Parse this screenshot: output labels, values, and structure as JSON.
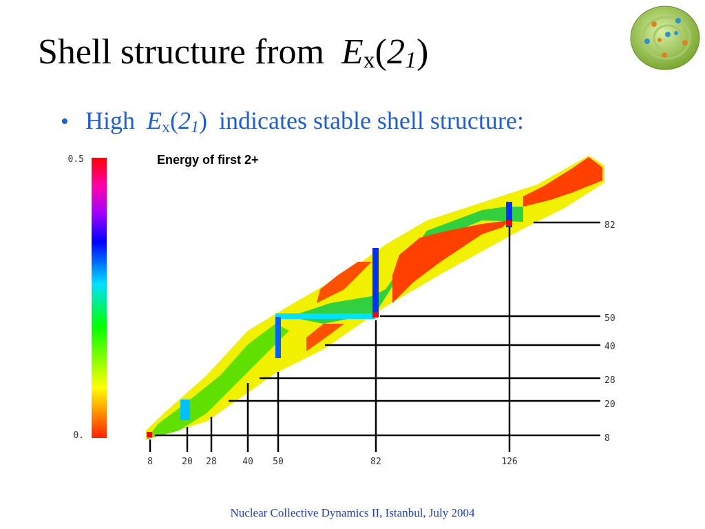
{
  "title": {
    "lead": "Shell structure from",
    "symbol": "E",
    "symbol_sub": "x",
    "open": "(",
    "state": "2",
    "state_sub": "1",
    "close": ")"
  },
  "bullet": {
    "lead": "High",
    "symbol": "E",
    "symbol_sub": "x",
    "open": "(",
    "state": "2",
    "state_sub": "1",
    "close": ")",
    "rest": "indicates stable shell structure:"
  },
  "figure": {
    "title": "Energy of first 2+",
    "scale": {
      "max": "0.5",
      "min": "0."
    },
    "proton_magic": [
      "82",
      "50",
      "40",
      "28",
      "20",
      "8"
    ],
    "neutron_magic": [
      "8",
      "20",
      "28",
      "40",
      "50",
      "82",
      "126"
    ]
  },
  "footer": "Nuclear Collective Dynamics II, Istanbul, July 2004"
}
